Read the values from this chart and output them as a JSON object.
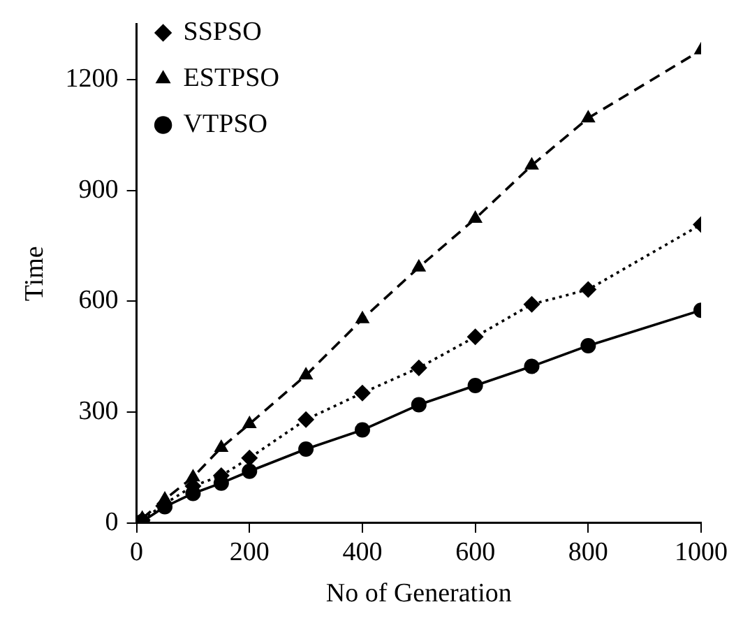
{
  "chart_data": {
    "type": "line",
    "xlabel": "No of Generation",
    "ylabel": "Time",
    "xlim": [
      0,
      1000
    ],
    "xticks": [
      0,
      200,
      400,
      600,
      800,
      1000
    ],
    "ylim": [
      0,
      1350
    ],
    "yticks": [
      0,
      300,
      600,
      900,
      1200
    ],
    "grid": false,
    "legend": "top left",
    "series": [
      {
        "name": "SSPSO",
        "color": "#000000",
        "marker": "diamond",
        "line_style": "dotted",
        "x": [
          10,
          50,
          100,
          150,
          200,
          300,
          400,
          500,
          600,
          700,
          800,
          1000
        ],
        "values": [
          8,
          52,
          100,
          128,
          176,
          280,
          352,
          420,
          504,
          592,
          632,
          808
        ]
      },
      {
        "name": "ESTPSO",
        "color": "#000000",
        "marker": "triangle",
        "line_style": "dashed",
        "x": [
          10,
          50,
          100,
          150,
          200,
          300,
          400,
          500,
          600,
          700,
          800,
          1000
        ],
        "values": [
          12,
          64,
          124,
          204,
          268,
          400,
          552,
          692,
          824,
          968,
          1096,
          1280
        ]
      },
      {
        "name": "VTPSO",
        "color": "#000000",
        "marker": "circle",
        "line_style": "solid",
        "x": [
          10,
          50,
          100,
          150,
          200,
          300,
          400,
          500,
          600,
          700,
          800,
          1000
        ],
        "values": [
          4,
          44,
          80,
          108,
          140,
          200,
          252,
          320,
          372,
          424,
          480,
          576
        ]
      }
    ]
  }
}
